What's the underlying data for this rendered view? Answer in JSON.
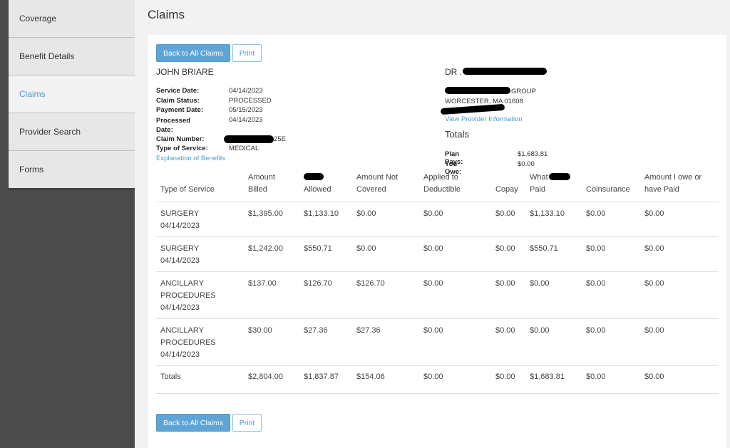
{
  "sidebar": {
    "items": [
      {
        "label": "Coverage"
      },
      {
        "label": "Benefit Details"
      },
      {
        "label": "Claims"
      },
      {
        "label": "Provider Search"
      },
      {
        "label": "Forms"
      }
    ]
  },
  "page": {
    "title": "Claims"
  },
  "actions": {
    "back_label": "Back to All Claims",
    "print_label": "Print"
  },
  "member": {
    "name": "JOHN BRIARE",
    "service_date_label": "Service Date:",
    "service_date": "04/14/2023",
    "claim_status_label": "Claim Status:",
    "claim_status": "PROCESSED",
    "payment_date_label": "Payment Date:",
    "payment_date": "05/15/2023",
    "processed_date_label": "Processed Date:",
    "processed_date": "04/14/2023",
    "claim_number_label": "Claim Number:",
    "claim_number_suffix": "25E",
    "type_of_service_label": "Type of Service:",
    "type_of_service": "MEDICAL",
    "eob_link": "Explanation of Benefits"
  },
  "provider": {
    "name_prefix": "DR .",
    "group_suffix": "GROUP",
    "city_line": "WORCESTER, MA 01608",
    "info_link": "View Provider Information",
    "totals_title": "Totals",
    "plan_pays_label": "Plan Pays:",
    "plan_pays": "$1,683.81",
    "you_owe_label": "You Owe:",
    "you_owe": "$0.00"
  },
  "table": {
    "headers": {
      "type": "Type of Service",
      "billed_1": "Amount",
      "billed_2": "Billed",
      "allowed": "Allowed",
      "not_covered_1": "Amount Not",
      "not_covered_2": "Covered",
      "deductible_1": "Applied to",
      "deductible_2": "Deductible",
      "copay": "Copay",
      "paid_1": "What",
      "paid_2": "Paid",
      "coinsurance": "Coinsurance",
      "owe_1": "Amount I owe or",
      "owe_2": "have Paid"
    },
    "rows": [
      {
        "service": "SURGERY",
        "date": "04/14/2023",
        "billed": "$1,395.00",
        "allowed": "$1,133.10",
        "not_covered": "$0.00",
        "deductible": "$0.00",
        "copay": "$0.00",
        "paid": "$1,133.10",
        "coinsurance": "$0.00",
        "owe": "$0.00"
      },
      {
        "service": "SURGERY",
        "date": "04/14/2023",
        "billed": "$1,242.00",
        "allowed": "$550.71",
        "not_covered": "$0.00",
        "deductible": "$0.00",
        "copay": "$0.00",
        "paid": "$550.71",
        "coinsurance": "$0.00",
        "owe": "$0.00"
      },
      {
        "service_1": "ANCILLARY",
        "service_2": "PROCEDURES",
        "date": "04/14/2023",
        "billed": "$137.00",
        "allowed": "$126.70",
        "not_covered": "$126.70",
        "deductible": "$0.00",
        "copay": "$0.00",
        "paid": "$0.00",
        "coinsurance": "$0.00",
        "owe": "$0.00"
      },
      {
        "service_1": "ANCILLARY",
        "service_2": "PROCEDURES",
        "date": "04/14/2023",
        "billed": "$30.00",
        "allowed": "$27.36",
        "not_covered": "$27.36",
        "deductible": "$0.00",
        "copay": "$0.00",
        "paid": "$0.00",
        "coinsurance": "$0.00",
        "owe": "$0.00"
      }
    ],
    "totals": {
      "label": "Totals",
      "billed": "$2,804.00",
      "allowed": "$1,837.87",
      "not_covered": "$154.06",
      "deductible": "$0.00",
      "copay": "$0.00",
      "paid": "$1,683.81",
      "coinsurance": "$0.00",
      "owe": "$0.00"
    }
  }
}
